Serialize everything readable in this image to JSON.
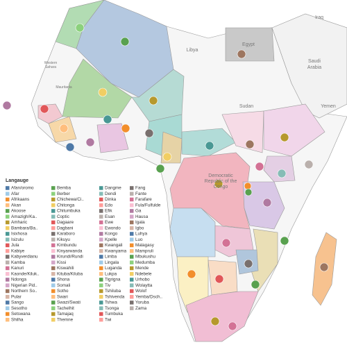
{
  "map_labels": [
    "Iraq",
    "Libya",
    "Egypt",
    "Saudi",
    "Arabia",
    "Sudan",
    "Yemen",
    "Western",
    "Sahara",
    "Mauritania",
    "Democratic",
    "Republic of the",
    "Congo"
  ],
  "legend": {
    "title": "Langauge",
    "items": [
      {
        "name": "Afan/oromo",
        "color": "#4e79a7"
      },
      {
        "name": "Afar",
        "color": "#a0cbe8"
      },
      {
        "name": "Afrikaans",
        "color": "#f28e2b"
      },
      {
        "name": "Akan",
        "color": "#ffbe7d"
      },
      {
        "name": "Akoose",
        "color": "#59a14f"
      },
      {
        "name": "Amazigh/Ka..",
        "color": "#8cd17d"
      },
      {
        "name": "Amharic",
        "color": "#b6992d"
      },
      {
        "name": "Bambara/Ba..",
        "color": "#f1ce63"
      },
      {
        "name": "Isixhosa",
        "color": "#499894"
      },
      {
        "name": "Isizulu",
        "color": "#86bcb6"
      },
      {
        "name": "Jula",
        "color": "#e15759"
      },
      {
        "name": "Kabiye",
        "color": "#ff9d9a"
      },
      {
        "name": "Kabyverdianu",
        "color": "#79706e"
      },
      {
        "name": "Kamba",
        "color": "#bab0ac"
      },
      {
        "name": "Kanuri",
        "color": "#d37295"
      },
      {
        "name": "Kaonde/Kiluk..",
        "color": "#fabfd2"
      },
      {
        "name": "Ndonga",
        "color": "#b07aa1"
      },
      {
        "name": "Nigerian Pid..",
        "color": "#d4a6c8"
      },
      {
        "name": "Northern So..",
        "color": "#9d7660"
      },
      {
        "name": "Pular",
        "color": "#d7b5a6"
      },
      {
        "name": "Sango",
        "color": "#4e79a7"
      },
      {
        "name": "Sesotho",
        "color": "#a0cbe8"
      },
      {
        "name": "Setswana",
        "color": "#f28e2b"
      },
      {
        "name": "Shilha",
        "color": "#ffbe7d"
      },
      {
        "name": "Bemba",
        "color": "#59a14f"
      },
      {
        "name": "Berber",
        "color": "#8cd17d"
      },
      {
        "name": "Chichewa/Ci..",
        "color": "#b6992d"
      },
      {
        "name": "Chitonga",
        "color": "#f1ce63"
      },
      {
        "name": "Chitumbuka",
        "color": "#499894"
      },
      {
        "name": "Coptic",
        "color": "#86bcb6"
      },
      {
        "name": "Dagaare",
        "color": "#e15759"
      },
      {
        "name": "Dagbani",
        "color": "#ff9d9a"
      },
      {
        "name": "Karaboro",
        "color": "#79706e"
      },
      {
        "name": "Kikuyu",
        "color": "#bab0ac"
      },
      {
        "name": "Kimbundu",
        "color": "#d37295"
      },
      {
        "name": "Kinyarwanda",
        "color": "#fabfd2"
      },
      {
        "name": "Kirundi/Rundi",
        "color": "#b07aa1"
      },
      {
        "name": "Kissi",
        "color": "#d4a6c8"
      },
      {
        "name": "Kiswahili",
        "color": "#9d7660"
      },
      {
        "name": "Kituba/Kiluba",
        "color": "#d7b5a6"
      },
      {
        "name": "Shona",
        "color": "#4e79a7"
      },
      {
        "name": "Somali",
        "color": "#a0cbe8"
      },
      {
        "name": "Sotho",
        "color": "#f28e2b"
      },
      {
        "name": "Swari",
        "color": "#ffbe7d"
      },
      {
        "name": "Swazi/Swati",
        "color": "#59a14f"
      },
      {
        "name": "Tachelhit",
        "color": "#8cd17d"
      },
      {
        "name": "Tamajaq",
        "color": "#b6992d"
      },
      {
        "name": "Themne",
        "color": "#f1ce63"
      },
      {
        "name": "Dangme",
        "color": "#499894"
      },
      {
        "name": "Dendi",
        "color": "#86bcb6"
      },
      {
        "name": "Dinka",
        "color": "#e15759"
      },
      {
        "name": "Edo",
        "color": "#ff9d9a"
      },
      {
        "name": "Efik",
        "color": "#79706e"
      },
      {
        "name": "Esan",
        "color": "#bab0ac"
      },
      {
        "name": "Ewe",
        "color": "#d37295"
      },
      {
        "name": "Ewondo",
        "color": "#fabfd2"
      },
      {
        "name": "Kongo",
        "color": "#b07aa1"
      },
      {
        "name": "Kpelle",
        "color": "#d4a6c8"
      },
      {
        "name": "Kwangali",
        "color": "#9d7660"
      },
      {
        "name": "Kwanyama",
        "color": "#d7b5a6"
      },
      {
        "name": "Limba",
        "color": "#4e79a7"
      },
      {
        "name": "Lingala",
        "color": "#a0cbe8"
      },
      {
        "name": "Luganda",
        "color": "#f28e2b"
      },
      {
        "name": "Lukpa",
        "color": "#ffbe7d"
      },
      {
        "name": "Tigrigna",
        "color": "#59a14f"
      },
      {
        "name": "Tiv",
        "color": "#8cd17d"
      },
      {
        "name": "Tshiluba",
        "color": "#b6992d"
      },
      {
        "name": "Tshivenda",
        "color": "#f1ce63"
      },
      {
        "name": "Tshwa",
        "color": "#499894"
      },
      {
        "name": "Tsonga",
        "color": "#86bcb6"
      },
      {
        "name": "Tumbuka",
        "color": "#e15759"
      },
      {
        "name": "Twi",
        "color": "#ff9d9a"
      },
      {
        "name": "Fang",
        "color": "#79706e"
      },
      {
        "name": "Fante",
        "color": "#bab0ac"
      },
      {
        "name": "Farafare",
        "color": "#d37295"
      },
      {
        "name": "Fula/Fulfulde",
        "color": "#fabfd2"
      },
      {
        "name": "Ga",
        "color": "#b07aa1"
      },
      {
        "name": "Hausa",
        "color": "#d4a6c8"
      },
      {
        "name": "Igala",
        "color": "#9d7660"
      },
      {
        "name": "Igbo",
        "color": "#d7b5a6"
      },
      {
        "name": "Luhya",
        "color": "#4e79a7"
      },
      {
        "name": "Luo",
        "color": "#a0cbe8"
      },
      {
        "name": "Malagasy",
        "color": "#f28e2b"
      },
      {
        "name": "Mampruli",
        "color": "#ffbe7d"
      },
      {
        "name": "Mbukushu",
        "color": "#59a14f"
      },
      {
        "name": "Medumba",
        "color": "#8cd17d"
      },
      {
        "name": "Mende",
        "color": "#b6992d"
      },
      {
        "name": "Ndebele",
        "color": "#f1ce63"
      },
      {
        "name": "Urhobo",
        "color": "#499894"
      },
      {
        "name": "Wolaytta",
        "color": "#86bcb6"
      },
      {
        "name": "Wolof",
        "color": "#e15759"
      },
      {
        "name": "Yemba/Dsch..",
        "color": "#ff9d9a"
      },
      {
        "name": "Yoruba",
        "color": "#79706e"
      },
      {
        "name": "Zama",
        "color": "#bab0ac"
      }
    ]
  }
}
